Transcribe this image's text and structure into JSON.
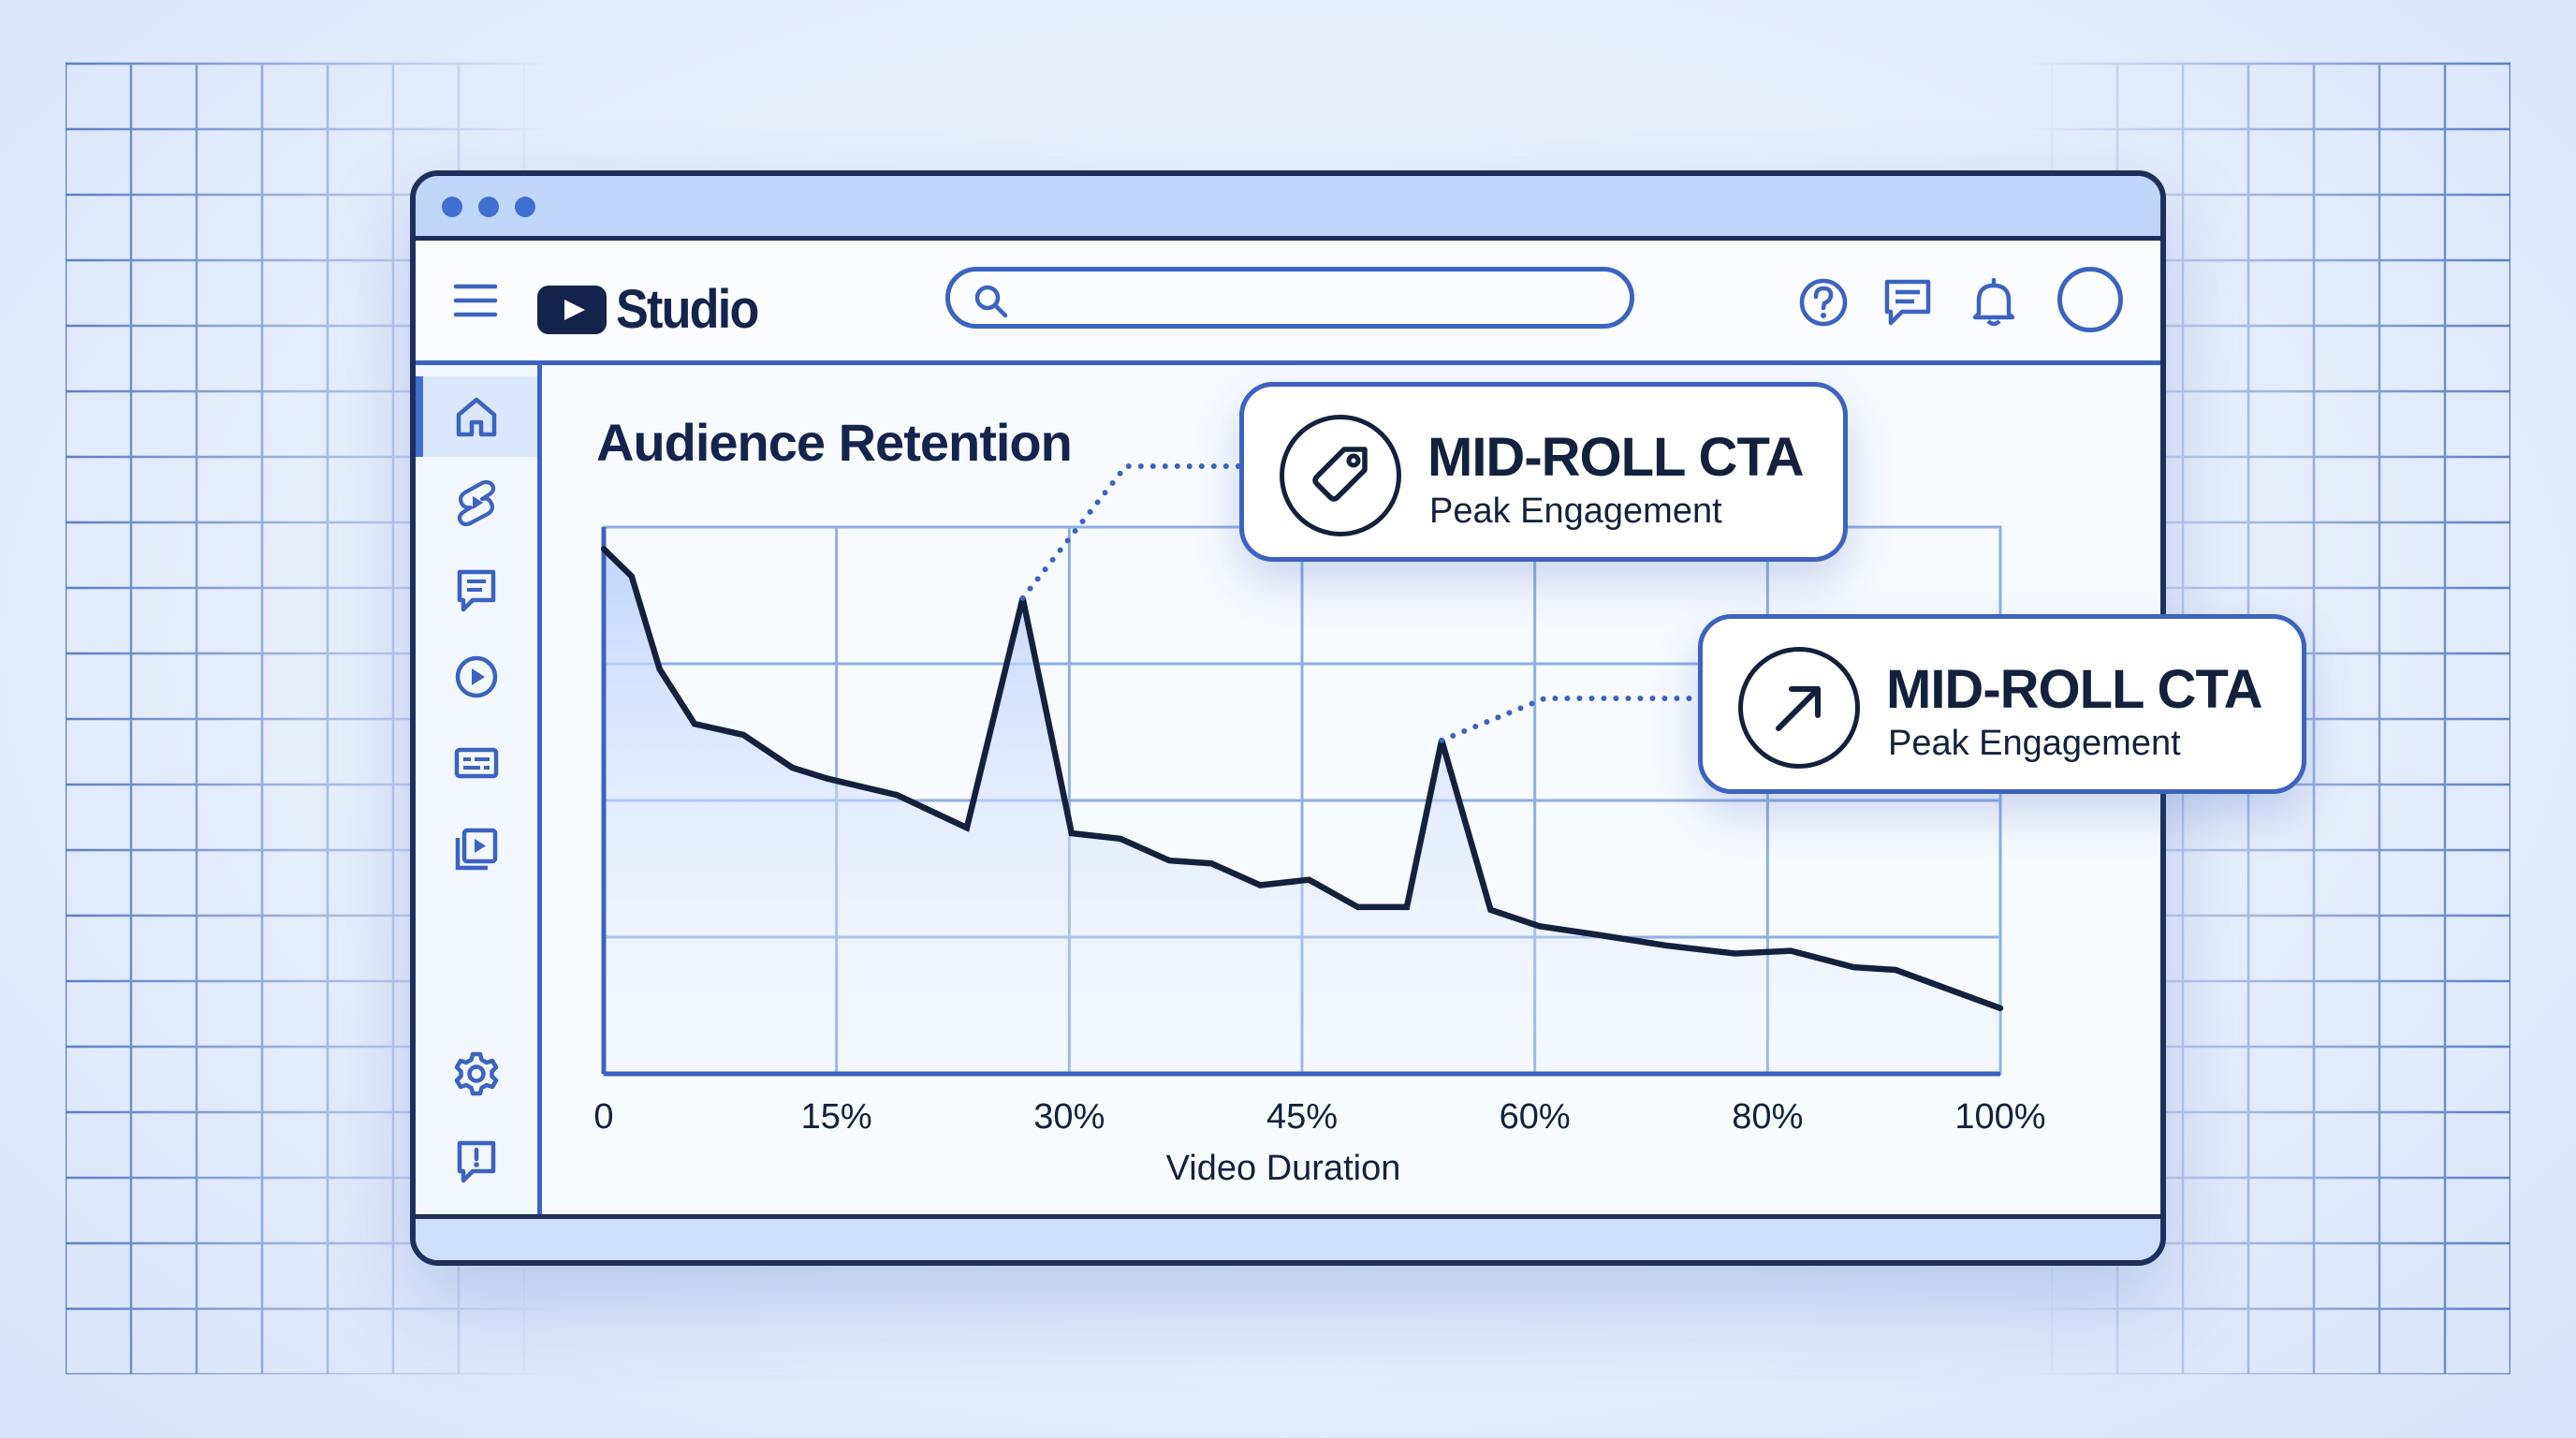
{
  "app": {
    "name": "Studio"
  },
  "header": {
    "search_placeholder": "",
    "icons": [
      "menu-icon",
      "search-icon",
      "help-icon",
      "feedback-icon",
      "bell-icon",
      "avatar"
    ]
  },
  "sidebar": {
    "items": [
      {
        "icon": "home-icon",
        "active": true
      },
      {
        "icon": "shorts-icon",
        "active": false
      },
      {
        "icon": "comments-icon",
        "active": false
      },
      {
        "icon": "play-icon",
        "active": false
      },
      {
        "icon": "subtitles-icon",
        "active": false
      },
      {
        "icon": "playlist-icon",
        "active": false
      },
      {
        "icon": "settings-icon",
        "active": false
      },
      {
        "icon": "send-feedback-icon",
        "active": false
      }
    ]
  },
  "main": {
    "title": "Audience Retention"
  },
  "callouts": [
    {
      "title": "MID-ROLL CTA",
      "subtitle": "Peak Engagement",
      "icon": "tag-icon",
      "anchor_x": 30
    },
    {
      "title": "MID-ROLL CTA",
      "subtitle": "Peak Engagement",
      "icon": "arrow-up-right-icon",
      "anchor_x": 60
    }
  ],
  "colors": {
    "navy": "#14213d",
    "accent_blue": "#3c63bf",
    "fill_blue": "#c8dafc",
    "titlebar": "#c0d6fb"
  },
  "chart_data": {
    "type": "line",
    "title": "Audience Retention",
    "xlabel": "Video Duration",
    "ylabel": "",
    "x_ticks": [
      0,
      15,
      30,
      45,
      60,
      80,
      100
    ],
    "x_tick_labels": [
      "0",
      "15%",
      "30%",
      "45%",
      "60%",
      "80%",
      "100%"
    ],
    "xlim": [
      0,
      100
    ],
    "ylim": [
      0,
      100
    ],
    "grid": true,
    "series": [
      {
        "x": [
          0,
          2,
          4,
          6.5,
          10,
          13.5,
          16,
          21,
          26,
          30,
          33.5,
          37,
          40.5,
          43.5,
          47,
          50.5,
          54,
          57.5,
          60,
          63.5,
          67,
          71,
          76,
          81,
          85,
          89.5,
          92.5,
          100
        ],
        "y": [
          96,
          91,
          74,
          64,
          62,
          56,
          54,
          51,
          45,
          87,
          44,
          43,
          39,
          38.5,
          34.5,
          35.5,
          30.5,
          30.5,
          61,
          30,
          27,
          25.5,
          23.5,
          22,
          22.5,
          19.5,
          19,
          12
        ]
      }
    ]
  }
}
